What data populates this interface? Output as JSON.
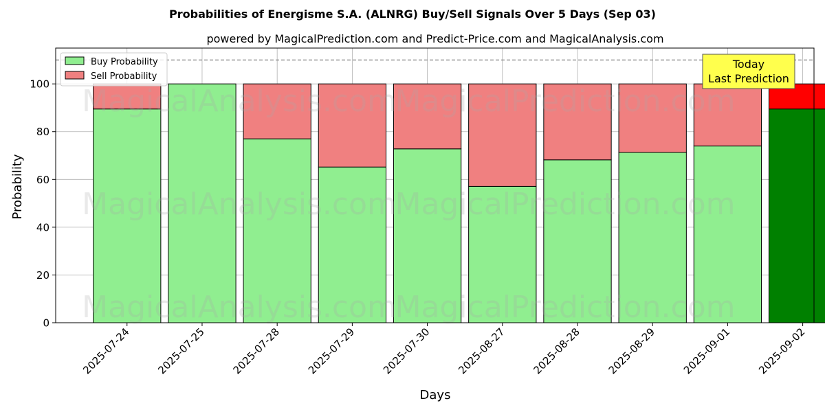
{
  "chart_data": {
    "type": "bar",
    "title": "Probabilities of Energisme S.A. (ALNRG) Buy/Sell Signals Over 5 Days (Sep 03)",
    "subtitle": "powered by MagicalPrediction.com and Predict-Price.com and MagicalAnalysis.com",
    "xlabel": "Days",
    "ylabel": "Probability",
    "ylim": [
      0,
      115
    ],
    "yticks": [
      0,
      20,
      40,
      60,
      80,
      100
    ],
    "grid": true,
    "legend_position": "top-left",
    "reference_line": 110,
    "categories": [
      "2025-07-24",
      "2025-07-25",
      "2025-07-28",
      "2025-07-29",
      "2025-07-30",
      "2025-08-27",
      "2025-08-28",
      "2025-08-29",
      "2025-09-01",
      "2025-09-02"
    ],
    "series": [
      {
        "name": "Buy Probability",
        "color": "#90ee90",
        "highlight_color": "#008000",
        "values": [
          89.5,
          100,
          77,
          65.2,
          72.8,
          57.1,
          68.2,
          71.3,
          74,
          89.5
        ]
      },
      {
        "name": "Sell Probability",
        "color": "#f08080",
        "highlight_color": "#ff0000",
        "values": [
          10.5,
          0,
          23,
          34.8,
          27.2,
          42.9,
          31.8,
          28.7,
          26,
          10.5
        ]
      }
    ],
    "annotation": {
      "lines": [
        "Today",
        "Last Prediction"
      ],
      "category": "2025-09-02",
      "bg_color": "#ffff4d"
    },
    "watermarks": [
      "MagicalAnalysis.com",
      "MagicalPrediction.com"
    ]
  }
}
